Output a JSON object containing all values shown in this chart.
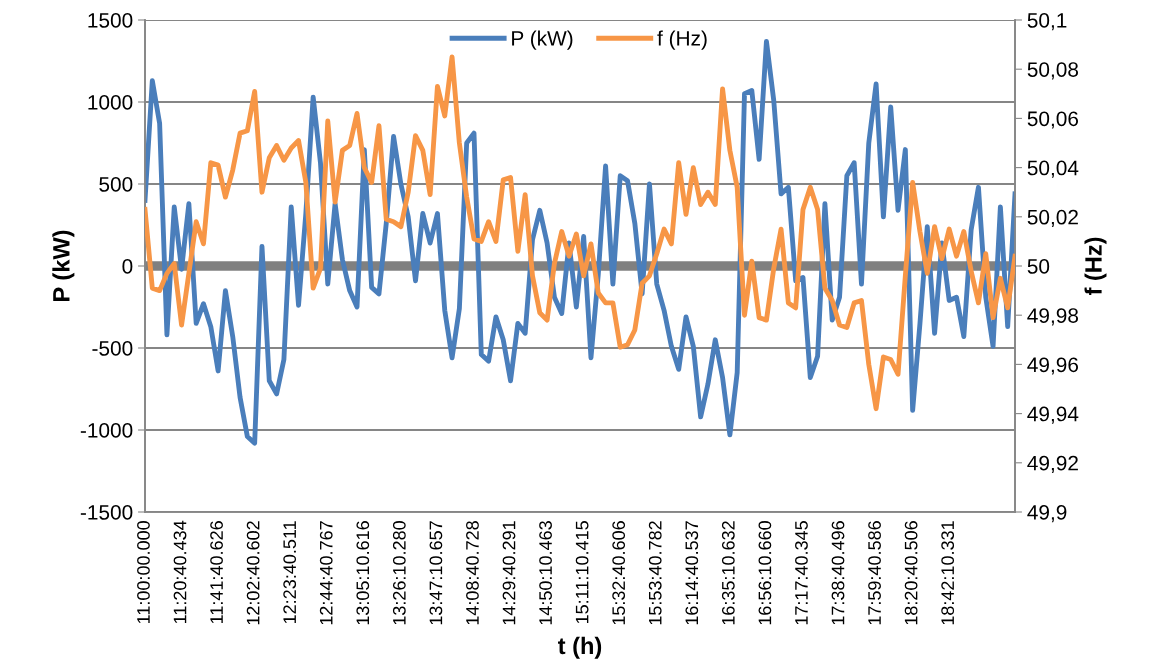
{
  "chart_data": {
    "type": "line",
    "xlabel": "t (h)",
    "ylabel": "P (kW)",
    "y2label": "f (Hz)",
    "legend": "top",
    "grid": "y",
    "line_style": "solid",
    "marker": "none",
    "categories": [
      "11:00:00.000",
      null,
      null,
      null,
      null,
      "11:20:40.434",
      null,
      null,
      null,
      null,
      "11:41:40.626",
      null,
      null,
      null,
      null,
      "12:02:40.602",
      null,
      null,
      null,
      null,
      "12:23:40.511",
      null,
      null,
      null,
      null,
      "12:44:40.767",
      null,
      null,
      null,
      null,
      "13:05:10.616",
      null,
      null,
      null,
      null,
      "13:26:10.280",
      null,
      null,
      null,
      null,
      "13:47:10.657",
      null,
      null,
      null,
      null,
      "14:08:40.728",
      null,
      null,
      null,
      null,
      "14:29:40.291",
      null,
      null,
      null,
      null,
      "14:50:10.463",
      null,
      null,
      null,
      null,
      "15:11:10.415",
      null,
      null,
      null,
      null,
      "15:32:40.606",
      null,
      null,
      null,
      null,
      "15:53:40.782",
      null,
      null,
      null,
      null,
      "16:14:40.537",
      null,
      null,
      null,
      null,
      "16:35:10.632",
      null,
      null,
      null,
      null,
      "16:56:10.660",
      null,
      null,
      null,
      null,
      "17:17:40.345",
      null,
      null,
      null,
      null,
      "17:38:40.496",
      null,
      null,
      null,
      null,
      "17:59:40.586",
      null,
      null,
      null,
      null,
      "18:20:40.506",
      null,
      null,
      null,
      null,
      "18:42:10.331",
      null,
      null,
      null,
      null,
      null,
      null,
      null,
      null,
      null
    ],
    "ylim": [
      -1500,
      1500
    ],
    "yticks": [
      -1500,
      -1000,
      -500,
      0,
      500,
      1000,
      1500
    ],
    "y2lim": [
      49.9,
      50.1
    ],
    "y2ticks": [
      {
        "value": 49.9,
        "label": "49,9"
      },
      {
        "value": 49.92,
        "label": "49,92"
      },
      {
        "value": 49.94,
        "label": "49,94"
      },
      {
        "value": 49.96,
        "label": "49,96"
      },
      {
        "value": 49.98,
        "label": "49,98"
      },
      {
        "value": 50.0,
        "label": "50"
      },
      {
        "value": 50.02,
        "label": "50,02"
      },
      {
        "value": 50.04,
        "label": "50,04"
      },
      {
        "value": 50.06,
        "label": "50,06"
      },
      {
        "value": 50.08,
        "label": "50,08"
      },
      {
        "value": 50.1,
        "label": "50,1"
      }
    ],
    "ref_lines": [
      {
        "axis": "y",
        "value": 0,
        "color": "#808080"
      }
    ],
    "series": [
      {
        "name": "P (kW)",
        "color": "#4a7ebb",
        "axis": "y",
        "values": [
          400,
          1130,
          870,
          -420,
          360,
          -20,
          380,
          -350,
          -230,
          -370,
          -640,
          -150,
          -430,
          -800,
          -1040,
          -1080,
          120,
          -700,
          -780,
          -570,
          360,
          -240,
          320,
          1030,
          630,
          -110,
          380,
          40,
          -150,
          -250,
          710,
          -130,
          -170,
          260,
          790,
          500,
          300,
          -90,
          320,
          140,
          320,
          -270,
          -560,
          -260,
          750,
          810,
          -540,
          -580,
          -310,
          -450,
          -700,
          -350,
          -410,
          160,
          340,
          140,
          -190,
          -290,
          140,
          -250,
          180,
          -560,
          -50,
          610,
          -110,
          550,
          520,
          260,
          -170,
          500,
          -110,
          -270,
          -490,
          -630,
          -310,
          -490,
          -920,
          -720,
          -450,
          -680,
          -1030,
          -650,
          1050,
          1070,
          650,
          1370,
          1010,
          440,
          480,
          -90,
          -70,
          -680,
          -550,
          380,
          -330,
          -190,
          550,
          630,
          -110,
          750,
          1110,
          300,
          970,
          340,
          710,
          -880,
          -350,
          240,
          -410,
          140,
          -210,
          -190,
          -430,
          220,
          480,
          -190,
          -490,
          360,
          -370,
          440
        ]
      },
      {
        "name": "f (Hz)",
        "color": "#f79646",
        "axis": "y2",
        "values": [
          50.023,
          49.991,
          49.99,
          49.997,
          50.001,
          49.976,
          49.997,
          50.018,
          50.009,
          50.042,
          50.041,
          50.028,
          50.039,
          50.054,
          50.055,
          50.071,
          50.03,
          50.044,
          50.049,
          50.043,
          50.048,
          50.051,
          50.034,
          49.991,
          49.999,
          50.059,
          50.026,
          50.047,
          50.049,
          50.062,
          50.04,
          50.034,
          50.057,
          50.019,
          50.018,
          50.016,
          50.03,
          50.053,
          50.047,
          50.029,
          50.073,
          50.061,
          50.085,
          50.05,
          50.028,
          50.011,
          50.01,
          50.018,
          50.01,
          50.035,
          50.036,
          50.006,
          50.029,
          49.996,
          49.981,
          49.978,
          50.001,
          50.014,
          50.004,
          50.013,
          49.996,
          50.009,
          49.989,
          49.985,
          49.985,
          49.967,
          49.968,
          49.974,
          49.993,
          49.996,
          50.005,
          50.015,
          50.009,
          50.042,
          50.021,
          50.04,
          50.025,
          50.03,
          50.025,
          50.072,
          50.047,
          50.032,
          49.98,
          50.002,
          49.979,
          49.978,
          49.999,
          50.015,
          49.985,
          49.983,
          50.023,
          50.032,
          50.023,
          49.991,
          49.986,
          49.976,
          49.975,
          49.985,
          49.986,
          49.96,
          49.942,
          49.963,
          49.962,
          49.956,
          49.996,
          50.034,
          50.014,
          49.997,
          50.016,
          50.003,
          50.015,
          50.004,
          50.014,
          49.998,
          49.985,
          50.005,
          49.979,
          49.995,
          49.983,
          50.004
        ]
      }
    ]
  }
}
